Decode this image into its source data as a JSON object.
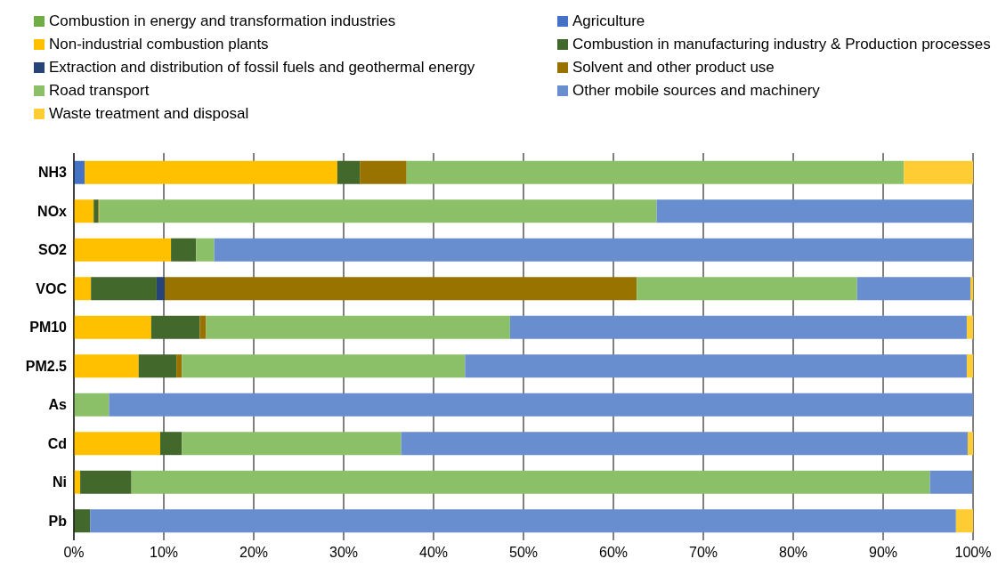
{
  "chart_data": {
    "type": "bar",
    "orientation": "horizontal",
    "stacked": true,
    "categories": [
      "NH3",
      "NOx",
      "SO2",
      "VOC",
      "PM10",
      "PM2.5",
      "As",
      "Cd",
      "Ni",
      "Pb"
    ],
    "series": [
      {
        "name": "Combustion in energy and transformation industries",
        "color": "#70ad47",
        "values": [
          0,
          0,
          0,
          0,
          0,
          0,
          0,
          0,
          0,
          0
        ]
      },
      {
        "name": "Agriculture",
        "color": "#4472c4",
        "values": [
          1.2,
          0,
          0,
          0,
          0,
          0,
          0,
          0,
          0,
          0
        ]
      },
      {
        "name": "Non-industrial combustion plants",
        "color": "#ffc000",
        "values": [
          28.1,
          2.2,
          10.8,
          1.9,
          8.6,
          7.2,
          0,
          9.6,
          0.7,
          0
        ]
      },
      {
        "name": "Combustion in manufacturing industry & Production processes",
        "color": "#43682b",
        "values": [
          2.5,
          0.5,
          2.8,
          7.3,
          5.4,
          4.2,
          0,
          2.4,
          5.7,
          1.8
        ]
      },
      {
        "name": "Extraction and distribution of fossil fuels and geothermal energy",
        "color": "#264478",
        "values": [
          0,
          0,
          0,
          0.9,
          0,
          0,
          0,
          0,
          0,
          0
        ]
      },
      {
        "name": "Solvent and other product use",
        "color": "#997300",
        "values": [
          5.2,
          0.1,
          0,
          52.5,
          0.7,
          0.6,
          0,
          0,
          0,
          0
        ]
      },
      {
        "name": "Road transport",
        "color": "#8cc068",
        "values": [
          55.3,
          62.0,
          2.0,
          24.5,
          33.8,
          31.5,
          3.9,
          24.4,
          88.8,
          0
        ]
      },
      {
        "name": "Other mobile sources and machinery",
        "color": "#698ed0",
        "values": [
          0,
          35.2,
          84.4,
          12.6,
          50.8,
          55.8,
          96.1,
          63.0,
          4.7,
          96.3
        ]
      },
      {
        "name": "Waste treatment and disposal",
        "color": "#ffcc33",
        "values": [
          7.7,
          0,
          0,
          0.3,
          0.7,
          0.7,
          0,
          0.6,
          0,
          1.9
        ]
      }
    ],
    "xlim": [
      0,
      100
    ],
    "xticks": [
      {
        "value": 0,
        "label": "0%"
      },
      {
        "value": 10,
        "label": "10%"
      },
      {
        "value": 20,
        "label": "20%"
      },
      {
        "value": 30,
        "label": "30%"
      },
      {
        "value": 40,
        "label": "40%"
      },
      {
        "value": 50,
        "label": "50%"
      },
      {
        "value": 60,
        "label": "60%"
      },
      {
        "value": 70,
        "label": "70%"
      },
      {
        "value": 80,
        "label": "80%"
      },
      {
        "value": 90,
        "label": "90%"
      },
      {
        "value": 100,
        "label": "100%"
      }
    ],
    "grid": "x",
    "legend": "top"
  }
}
